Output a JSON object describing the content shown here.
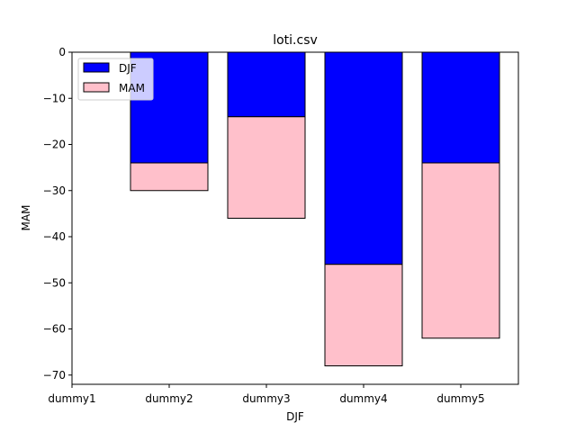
{
  "chart_data": {
    "type": "bar",
    "stacked": true,
    "title": "loti.csv",
    "xlabel": "DJF",
    "ylabel": "MAM",
    "categories": [
      "dummy1",
      "dummy2",
      "dummy3",
      "dummy4",
      "dummy5"
    ],
    "series": [
      {
        "name": "DJF",
        "color": "#0000ff",
        "values": [
          null,
          -24,
          -14,
          -46,
          -24
        ]
      },
      {
        "name": "MAM",
        "color": "#ffc0cb",
        "values": [
          null,
          -6,
          -22,
          -22,
          -38
        ]
      }
    ],
    "ylim": [
      -72,
      0
    ],
    "yticks": [
      0,
      -10,
      -20,
      -30,
      -40,
      -50,
      -60,
      -70
    ],
    "ytick_labels": [
      "0",
      "−10",
      "−20",
      "−30",
      "−40",
      "−50",
      "−60",
      "−70"
    ],
    "grid": false,
    "legend_position": "top-left"
  }
}
